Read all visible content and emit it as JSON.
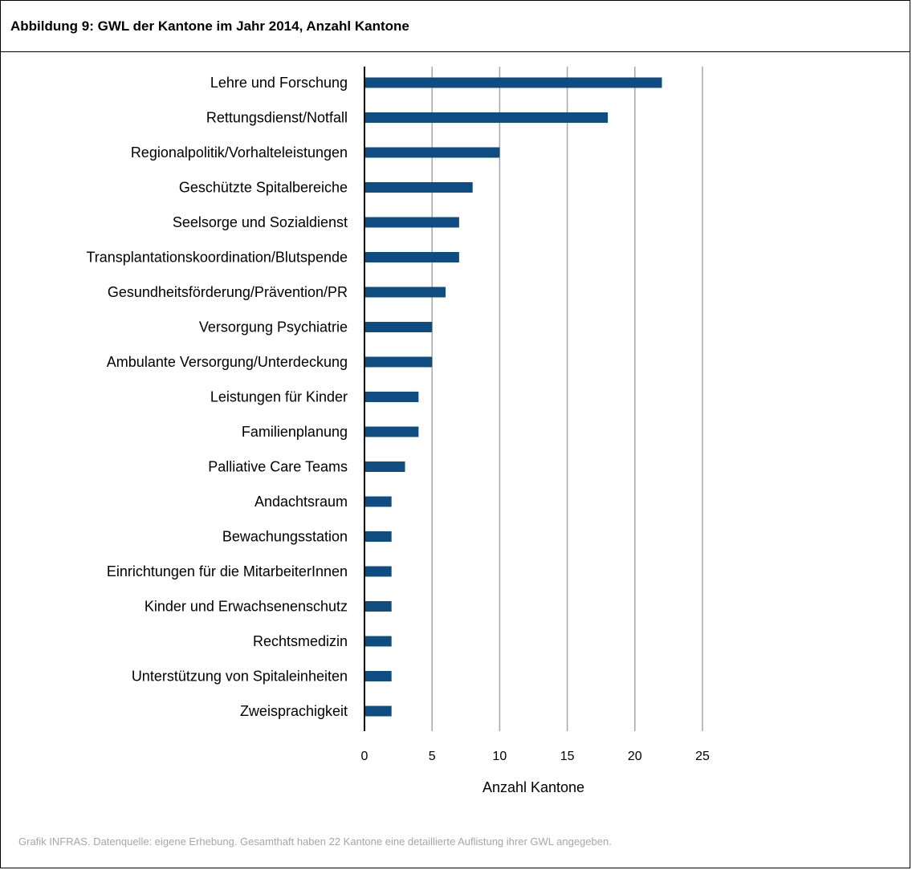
{
  "figure": {
    "title": "Abbildung 9: GWL der Kantone im Jahr 2014, Anzahl Kantone",
    "source": "Grafik INFRAS. Datenquelle: eigene Erhebung. Gesamthaft haben 22 Kantone eine detaillierte Auflistung ihrer GWL angegeben."
  },
  "chart_data": {
    "type": "bar",
    "orientation": "horizontal",
    "categories": [
      "Lehre und Forschung",
      "Rettungsdienst/Notfall",
      "Regionalpolitik/Vorhalteleistungen",
      "Geschützte Spitalbereiche",
      "Seelsorge und Sozialdienst",
      "Transplantationskoordination/Blutspende",
      "Gesundheitsförderung/Prävention/PR",
      "Versorgung Psychiatrie",
      "Ambulante Versorgung/Unterdeckung",
      "Leistungen für Kinder",
      "Familienplanung",
      "Palliative Care Teams",
      "Andachtsraum",
      "Bewachungsstation",
      "Einrichtungen für die MitarbeiterInnen",
      "Kinder und Erwachsenenschutz",
      "Rechtsmedizin",
      "Unterstützung von Spitaleinheiten",
      "Zweisprachigkeit"
    ],
    "values": [
      22,
      18,
      10,
      8,
      7,
      7,
      6,
      5,
      5,
      4,
      4,
      3,
      2,
      2,
      2,
      2,
      2,
      2,
      2
    ],
    "xlabel": "Anzahl Kantone",
    "ylabel": "",
    "xlim": [
      0,
      25
    ],
    "xticks": [
      "0",
      "5",
      "10",
      "15",
      "20",
      "25"
    ],
    "grid": true,
    "colors": {
      "bar": "#0f4c81",
      "grid": "#a6a6a6",
      "axis": "#000000"
    }
  }
}
